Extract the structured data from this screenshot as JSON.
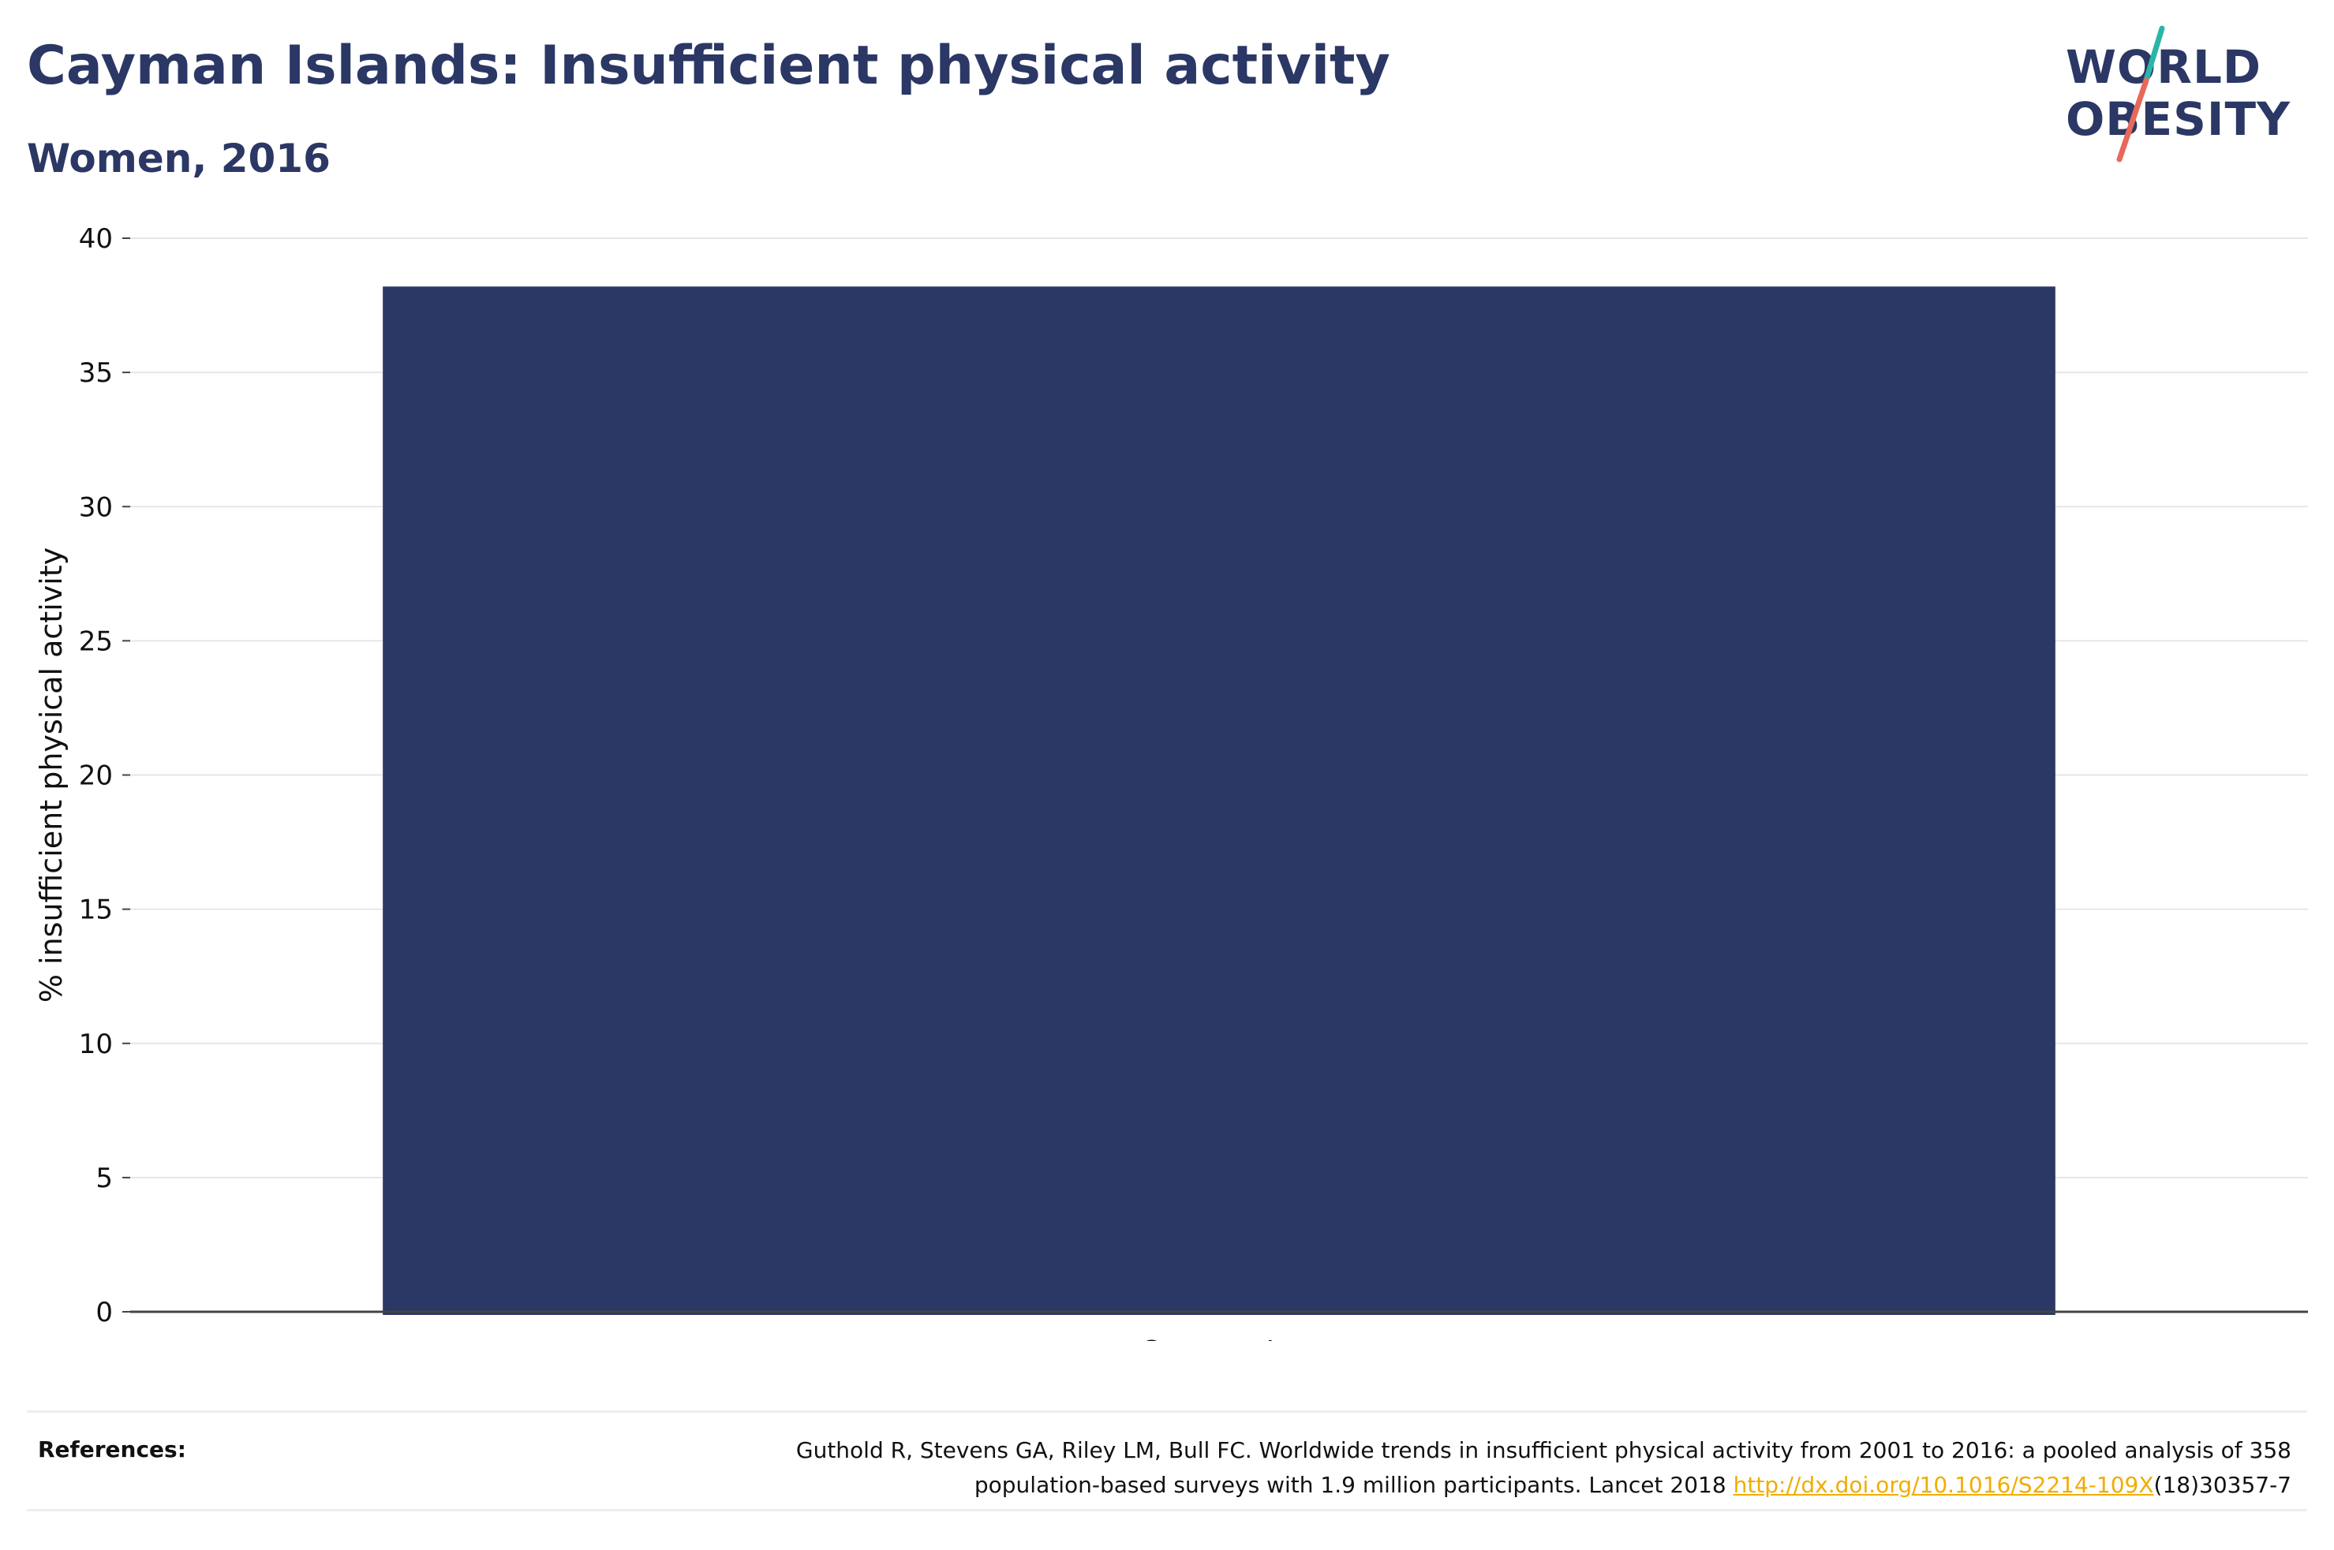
{
  "header": {
    "title": "Cayman Islands: Insufficient physical activity",
    "subtitle": "Women, 2016"
  },
  "logo": {
    "line1": "WORLD",
    "line2": "OBESITY",
    "accent_colors": [
      "#2bb5a9",
      "#e8685a"
    ]
  },
  "chart_data": {
    "type": "bar",
    "categories": [
      "Cayman Is."
    ],
    "values": [
      38.2
    ],
    "title": "Cayman Islands: Insufficient physical activity",
    "subtitle": "Women, 2016",
    "xlabel": "",
    "ylabel": "% insufficient physical activity",
    "ylim": [
      0,
      40
    ],
    "yticks": [
      0,
      5,
      10,
      15,
      20,
      25,
      30,
      35,
      40
    ],
    "grid": true,
    "bar_color": "#2b3764"
  },
  "references": {
    "label": "References:",
    "line1": "Guthold R, Stevens GA, Riley LM, Bull FC. Worldwide trends in insufficient physical activity from 2001 to 2016: a pooled analysis of 358",
    "line2_pre": "population-based surveys with 1.9 million participants. Lancet 2018 ",
    "link": "http://dx.doi.org/10.1016/S2214-109X",
    "line2_post": "(18)30357-7"
  }
}
